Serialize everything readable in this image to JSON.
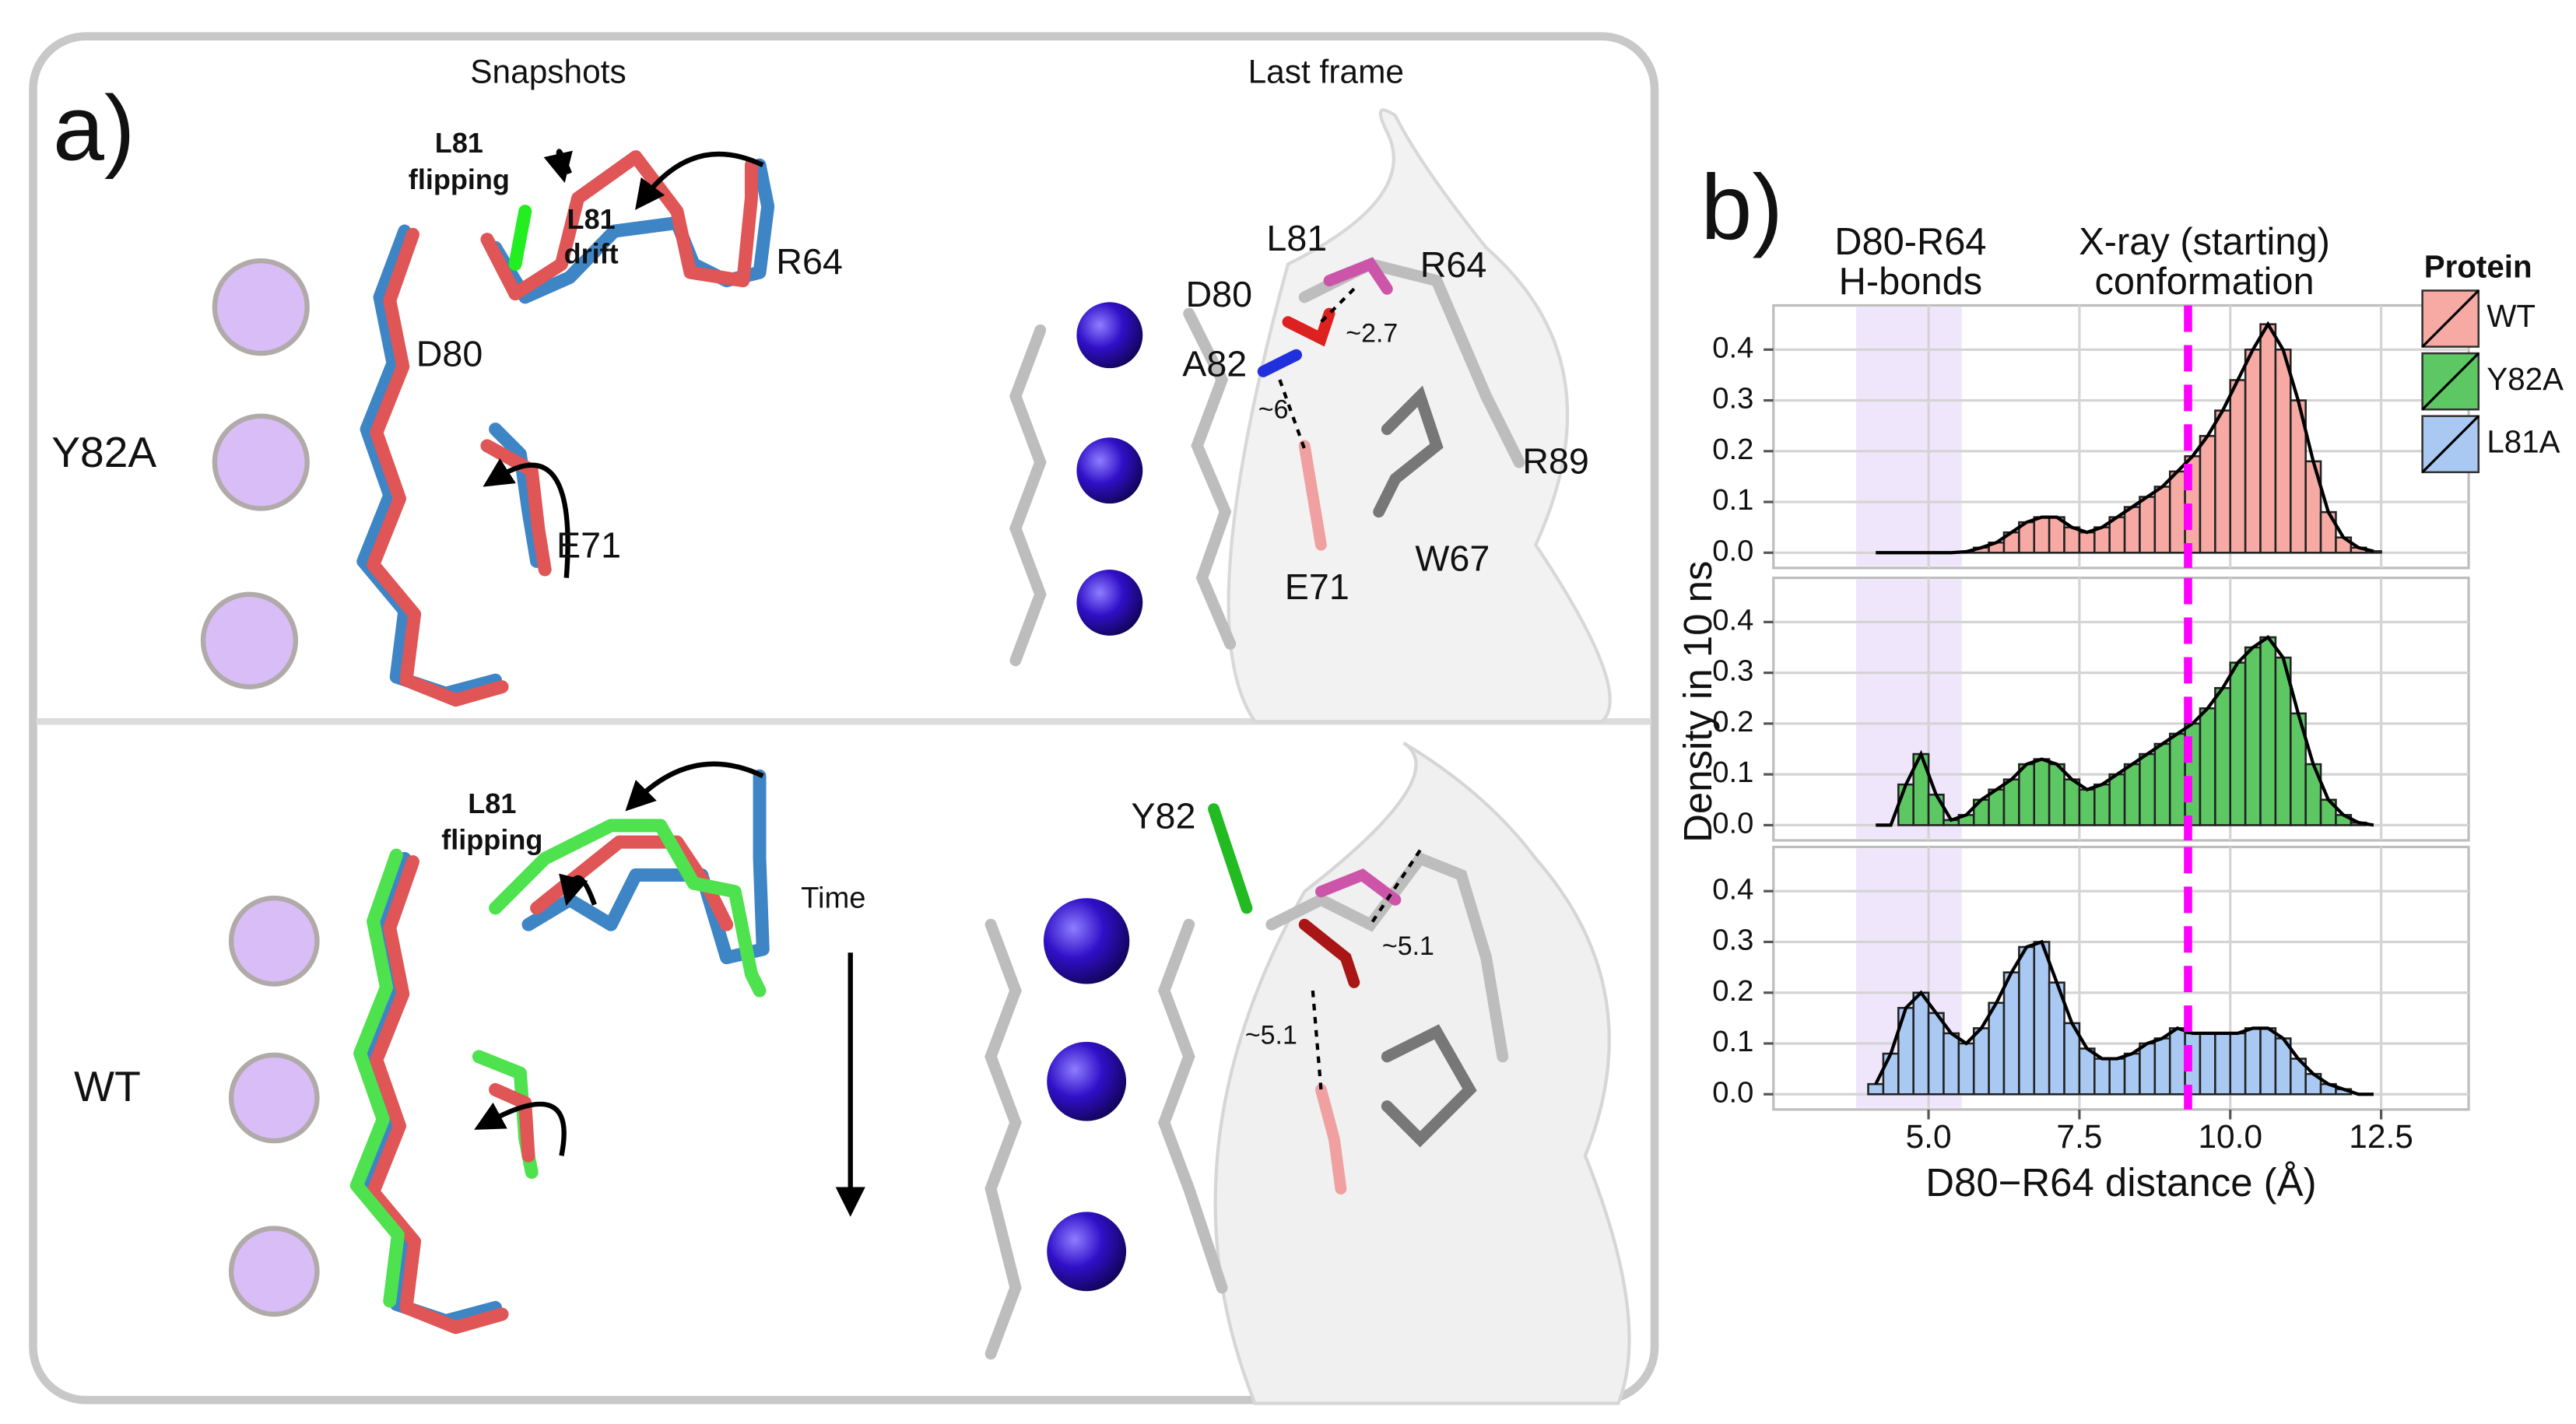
{
  "panel_a": {
    "label": "a)",
    "columns": [
      "Snapshots",
      "Last frame"
    ],
    "rows": [
      "Y82A",
      "WT"
    ],
    "labels": [
      [
        "L81",
        "flipping"
      ],
      [
        "L81",
        "drift"
      ],
      "R64",
      "D80",
      "E71",
      "L81",
      "R64",
      "D80",
      "A82",
      "~2.7",
      "~6",
      "R89",
      "W67",
      "E71",
      [
        "L81",
        "flipping"
      ],
      "Time",
      "Y82",
      "~5.1",
      "~5.1"
    ]
  },
  "chart_data": {
    "type": "histogram",
    "panel_label": "b)",
    "xlabel": "D80−R64 distance (Å)",
    "ylabel": "Density in 10 ns",
    "annotations": [
      [
        "D80-R64",
        "H-bonds"
      ],
      [
        "X-ray (starting)",
        "conformation"
      ]
    ],
    "legend_title": "Protein",
    "legend": "right",
    "facets": true,
    "grid": true,
    "reference_line": {
      "value": 9.3,
      "color": "#ff00ff"
    },
    "shaded_band": {
      "range": [
        3.8,
        5.55
      ],
      "color": "#eadcfa"
    },
    "xlim": [
      2.43,
      13.95
    ],
    "ylim": [
      -0.03,
      0.487
    ],
    "xticks": [
      {
        "value": 5.0,
        "label": "5.0"
      },
      7.5,
      {
        "value": 10.0,
        "label": "10.0"
      },
      12.5
    ],
    "yticks": [
      {
        "value": 0.0,
        "label": "0.0"
      },
      0.1,
      0.2,
      0.3,
      0.4
    ],
    "bins": [
      4.0,
      4.25,
      4.5,
      4.75,
      5.0,
      5.25,
      5.5,
      5.75,
      6.0,
      6.25,
      6.5,
      6.75,
      7.0,
      7.25,
      7.5,
      7.75,
      8.0,
      8.25,
      8.5,
      8.75,
      9.0,
      9.25,
      9.5,
      9.75,
      10.0,
      10.25,
      10.5,
      10.75,
      11.0,
      11.25,
      11.5,
      11.75,
      12.0,
      12.25,
      12.5
    ],
    "series": [
      {
        "name": "WT",
        "color": "#f6aaa3",
        "values": [
          0,
          0,
          0,
          0,
          0,
          0,
          0.002,
          0.01,
          0.02,
          0.04,
          0.06,
          0.07,
          0.07,
          0.05,
          0.04,
          0.05,
          0.07,
          0.09,
          0.11,
          0.13,
          0.16,
          0.19,
          0.23,
          0.28,
          0.34,
          0.4,
          0.45,
          0.4,
          0.3,
          0.18,
          0.08,
          0.03,
          0.01,
          0.003
        ]
      },
      {
        "name": "Y82A",
        "color": "#5dc863",
        "values": [
          0,
          0,
          0.08,
          0.14,
          0.06,
          0.01,
          0.02,
          0.05,
          0.07,
          0.09,
          0.12,
          0.13,
          0.12,
          0.09,
          0.07,
          0.08,
          0.1,
          0.12,
          0.14,
          0.16,
          0.18,
          0.2,
          0.23,
          0.27,
          0.32,
          0.35,
          0.37,
          0.33,
          0.22,
          0.12,
          0.05,
          0.02,
          0.005,
          0
        ]
      },
      {
        "name": "L81A",
        "color": "#a9c9f3",
        "values": [
          0.02,
          0.08,
          0.17,
          0.2,
          0.16,
          0.12,
          0.1,
          0.13,
          0.18,
          0.24,
          0.29,
          0.3,
          0.22,
          0.14,
          0.09,
          0.07,
          0.07,
          0.08,
          0.1,
          0.11,
          0.13,
          0.12,
          0.12,
          0.12,
          0.12,
          0.13,
          0.13,
          0.11,
          0.07,
          0.04,
          0.02,
          0.01,
          0,
          0
        ]
      }
    ]
  }
}
